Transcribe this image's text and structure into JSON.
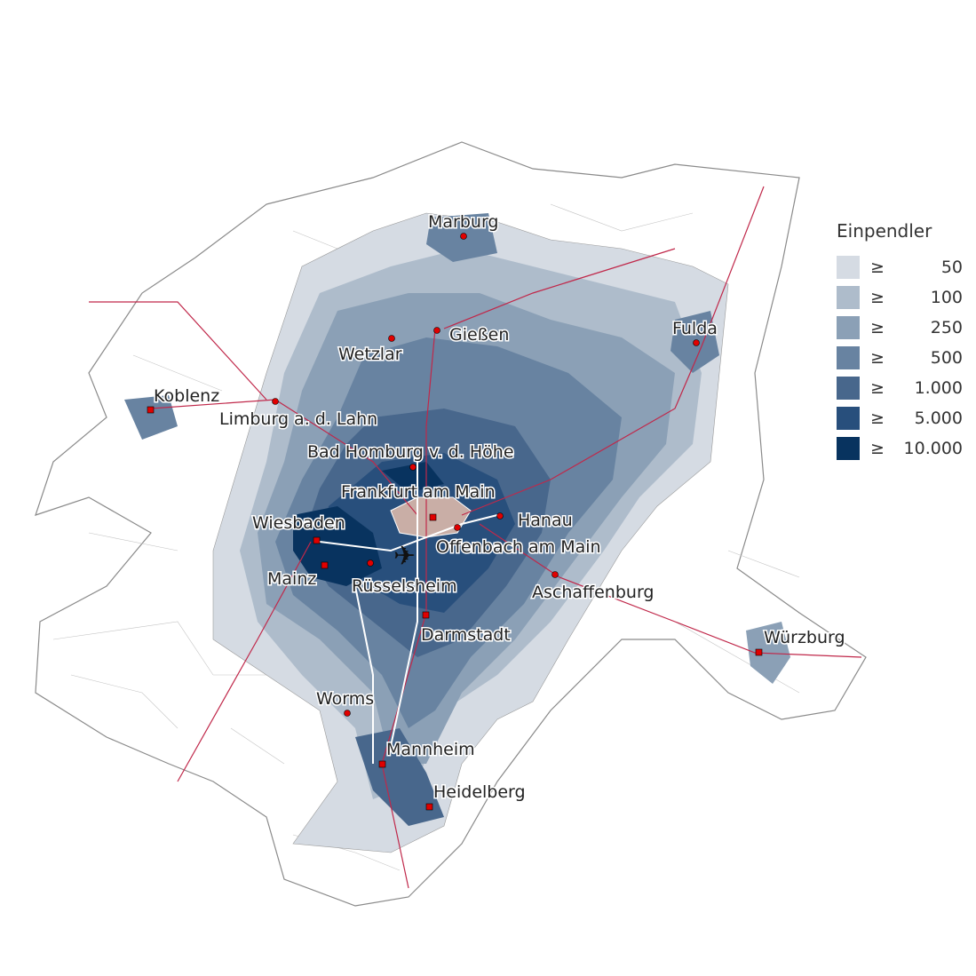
{
  "legend": {
    "title": "Einpendler",
    "symbol": "≥",
    "classes": [
      {
        "label": "50",
        "color": "#d5dbe3"
      },
      {
        "label": "100",
        "color": "#aebccb"
      },
      {
        "label": "250",
        "color": "#8ba0b6"
      },
      {
        "label": "500",
        "color": "#6883a1"
      },
      {
        "label": "1.000",
        "color": "#48678c"
      },
      {
        "label": "5.000",
        "color": "#284f7c"
      },
      {
        "label": "10.000",
        "color": "#08335f"
      }
    ]
  },
  "colors": {
    "destination": "#c9aea6",
    "rail": "#c0284a",
    "city_marker": "#e00000",
    "boundary": "#9a9a9a"
  },
  "icons": {
    "airport": "airplane-icon"
  },
  "cities": [
    {
      "name": "Marburg"
    },
    {
      "name": "Gießen"
    },
    {
      "name": "Wetzlar"
    },
    {
      "name": "Fulda"
    },
    {
      "name": "Koblenz"
    },
    {
      "name": "Limburg a. d. Lahn"
    },
    {
      "name": "Bad Homburg v. d. Höhe"
    },
    {
      "name": "Frankfurt am Main"
    },
    {
      "name": "Wiesbaden"
    },
    {
      "name": "Hanau"
    },
    {
      "name": "Offenbach am Main"
    },
    {
      "name": "Mainz"
    },
    {
      "name": "Rüsselsheim"
    },
    {
      "name": "Aschaffenburg"
    },
    {
      "name": "Darmstadt"
    },
    {
      "name": "Würzburg"
    },
    {
      "name": "Worms"
    },
    {
      "name": "Mannheim"
    },
    {
      "name": "Heidelberg"
    }
  ]
}
